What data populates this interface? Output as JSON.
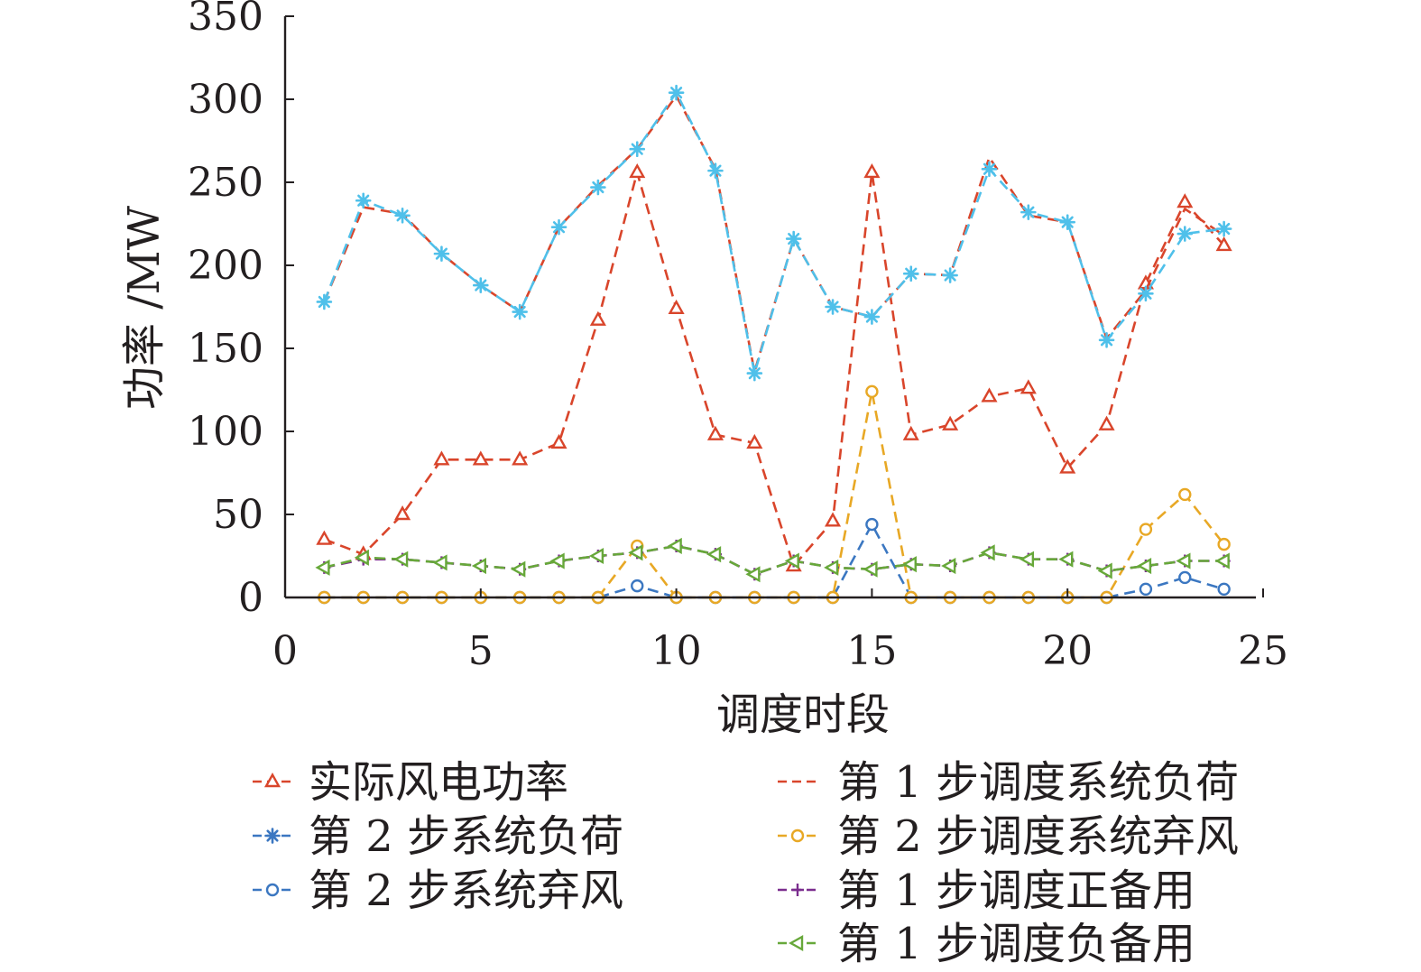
{
  "chart_data": {
    "type": "line",
    "xlabel": "调度时段",
    "ylabel": "功率 /MW",
    "xlim": [
      0,
      25
    ],
    "ylim": [
      0,
      350
    ],
    "xticks": [
      0,
      5,
      10,
      15,
      20,
      25
    ],
    "yticks": [
      0,
      50,
      100,
      150,
      200,
      250,
      300,
      350
    ],
    "grid": false,
    "legend_position": "bottom",
    "x": [
      1,
      2,
      3,
      4,
      5,
      6,
      7,
      8,
      9,
      10,
      11,
      12,
      13,
      14,
      15,
      16,
      17,
      18,
      19,
      20,
      21,
      22,
      23,
      24
    ],
    "series": [
      {
        "name": "实际风电功率",
        "color": "#d9452b",
        "marker": "triangle-up",
        "dash": "dashed",
        "values": [
          35,
          26,
          50,
          83,
          83,
          83,
          93,
          167,
          256,
          174,
          98,
          93,
          19,
          46,
          256,
          98,
          104,
          121,
          126,
          78,
          104,
          189,
          238,
          212
        ]
      },
      {
        "name": "第 1 步调度系统负荷",
        "color": "#d9452b",
        "marker": "none",
        "dash": "dashed",
        "values": [
          178,
          235,
          231,
          207,
          188,
          172,
          223,
          248,
          270,
          302,
          258,
          136,
          216,
          175,
          169,
          195,
          194,
          265,
          230,
          226,
          156,
          185,
          234,
          218
        ]
      },
      {
        "name": "第 2 步系统负荷",
        "color": "#3b77c1",
        "marker": "asterisk",
        "dash": "dashed",
        "values": [
          178,
          239,
          230,
          207,
          188,
          172,
          223,
          247,
          270,
          304,
          257,
          135,
          216,
          175,
          169,
          195,
          194,
          258,
          232,
          226,
          155,
          183,
          219,
          222
        ]
      },
      {
        "name": "第 2 步调度系统弃风",
        "color": "#e8a825",
        "marker": "circle",
        "dash": "dashed",
        "values": [
          0,
          0,
          0,
          0,
          0,
          0,
          0,
          0,
          31,
          0,
          0,
          0,
          0,
          0,
          124,
          0,
          0,
          0,
          0,
          0,
          0,
          41,
          62,
          32
        ]
      },
      {
        "name": "第 2 步系统弃风",
        "color": "#3b77c1",
        "marker": "circle",
        "dash": "dashed",
        "values": [
          0,
          0,
          0,
          0,
          0,
          0,
          0,
          0,
          7,
          0,
          0,
          0,
          0,
          0,
          44,
          0,
          0,
          0,
          0,
          0,
          0,
          5,
          12,
          5
        ]
      },
      {
        "name": "第 1 步调度正备用",
        "color": "#7b2d8e",
        "marker": "plus",
        "dash": "dashed",
        "values": [
          18,
          23,
          23,
          21,
          19,
          17,
          22,
          25,
          27,
          31,
          26,
          14,
          22,
          18,
          17,
          20,
          19,
          27,
          23,
          23,
          16,
          19,
          22,
          22
        ]
      },
      {
        "name": "第 1 步调度负备用",
        "color": "#67a83a",
        "marker": "triangle-left",
        "dash": "dashed",
        "values": [
          18,
          24,
          23,
          21,
          19,
          17,
          22,
          25,
          27,
          31,
          26,
          14,
          22,
          18,
          17,
          20,
          19,
          27,
          23,
          23,
          16,
          19,
          22,
          22
        ]
      }
    ],
    "legend": {
      "left": [
        {
          "series": 0,
          "label": "实际风电功率"
        },
        {
          "series": 2,
          "label": "第 2 步系统负荷"
        },
        {
          "series": 4,
          "label": "第 2 步系统弃风"
        }
      ],
      "right": [
        {
          "series": 1,
          "label": "第 1 步调度系统负荷"
        },
        {
          "series": 3,
          "label": "第 2 步调度系统弃风"
        },
        {
          "series": 5,
          "label": "第 1 步调度正备用"
        },
        {
          "series": 6,
          "label": "第 1 步调度负备用"
        }
      ]
    }
  }
}
